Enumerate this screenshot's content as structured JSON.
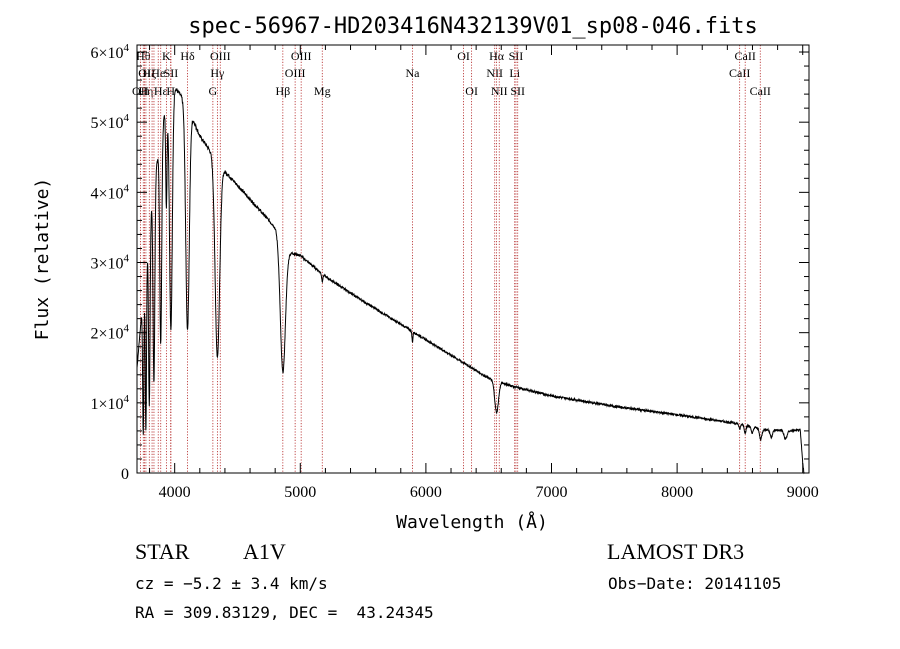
{
  "colors": {
    "axis": "#000000",
    "spectrum": "#000000",
    "line_marker": "#b22222"
  },
  "chart_data": {
    "type": "line",
    "title": "spec-56967-HD203416N432139V01_sp08-046.fits",
    "xlabel": "Wavelength (Å)",
    "ylabel": "Flux (relative)",
    "xlim": [
      3700,
      9050
    ],
    "ylim": [
      0,
      61000
    ],
    "xticks": [
      4000,
      5000,
      6000,
      7000,
      8000,
      9000
    ],
    "xtick_labels": [
      "4000",
      "5000",
      "6000",
      "7000",
      "8000",
      "9000"
    ],
    "yticks": [
      {
        "value": 0,
        "mantissa": "0",
        "exp": ""
      },
      {
        "value": 10000,
        "mantissa": "1×10",
        "exp": "4"
      },
      {
        "value": 20000,
        "mantissa": "2×10",
        "exp": "4"
      },
      {
        "value": 30000,
        "mantissa": "3×10",
        "exp": "4"
      },
      {
        "value": 40000,
        "mantissa": "4×10",
        "exp": "4"
      },
      {
        "value": 50000,
        "mantissa": "5×10",
        "exp": "4"
      },
      {
        "value": 60000,
        "mantissa": "6×10",
        "exp": "4"
      }
    ],
    "continuum": [
      [
        3700,
        15000
      ],
      [
        3800,
        36000
      ],
      [
        3900,
        50000
      ],
      [
        4000,
        55000
      ],
      [
        4100,
        52500
      ],
      [
        4200,
        48000
      ],
      [
        4400,
        43000
      ],
      [
        4600,
        39000
      ],
      [
        4800,
        35000
      ],
      [
        4900,
        31500
      ],
      [
        5000,
        31000
      ],
      [
        5200,
        28000
      ],
      [
        5500,
        24500
      ],
      [
        6000,
        19000
      ],
      [
        6500,
        13500
      ],
      [
        6700,
        12300
      ],
      [
        7000,
        11000
      ],
      [
        7500,
        9500
      ],
      [
        8000,
        8300
      ],
      [
        8500,
        7000
      ],
      [
        8700,
        6200
      ],
      [
        8900,
        6000
      ],
      [
        8980,
        6100
      ],
      [
        9000,
        1500
      ],
      [
        9010,
        0
      ]
    ],
    "absorptions": [
      {
        "center": 3750,
        "width": 5,
        "depth": 20000
      },
      {
        "center": 3771,
        "width": 5,
        "depth": 24000
      },
      {
        "center": 3798,
        "width": 6,
        "depth": 26000
      },
      {
        "center": 3835,
        "width": 7,
        "depth": 28000
      },
      {
        "center": 3889,
        "width": 8,
        "depth": 30000
      },
      {
        "center": 3934,
        "width": 5,
        "depth": 14000
      },
      {
        "center": 3970,
        "width": 11,
        "depth": 33000
      },
      {
        "center": 4102,
        "width": 14,
        "depth": 32000
      },
      {
        "center": 4340,
        "width": 18,
        "depth": 28000
      },
      {
        "center": 4861,
        "width": 20,
        "depth": 18500
      },
      {
        "center": 5175,
        "width": 5,
        "depth": 1000
      },
      {
        "center": 5893,
        "width": 4,
        "depth": 1500
      },
      {
        "center": 6563,
        "width": 15,
        "depth": 4500
      },
      {
        "center": 8498,
        "width": 6,
        "depth": 800
      },
      {
        "center": 8542,
        "width": 7,
        "depth": 1100
      },
      {
        "center": 8598,
        "width": 9,
        "depth": 900
      },
      {
        "center": 8665,
        "width": 10,
        "depth": 1500
      },
      {
        "center": 8750,
        "width": 10,
        "depth": 1000
      },
      {
        "center": 8863,
        "width": 12,
        "depth": 1200
      }
    ],
    "line_markers": [
      {
        "wavelength": 3727,
        "label": "OII",
        "row": 2
      },
      {
        "wavelength": 3750,
        "label": "Hθ",
        "row": 0
      },
      {
        "wavelength": 3760,
        "label": "OI",
        "row": 1
      },
      {
        "wavelength": 3771,
        "label": "Hη",
        "row": 2
      },
      {
        "wavelength": 3798,
        "label": "Hζ",
        "row": 1
      },
      {
        "wavelength": 3820,
        "label": "",
        "row": 1
      },
      {
        "wavelength": 3835,
        "label": "",
        "row": 0
      },
      {
        "wavelength": 3869,
        "label": "He",
        "row": 1
      },
      {
        "wavelength": 3889,
        "label": "Hε",
        "row": 2
      },
      {
        "wavelength": 3934,
        "label": "K",
        "row": 0
      },
      {
        "wavelength": 3968,
        "label": "H",
        "row": 2
      },
      {
        "wavelength": 3970,
        "label": "SII",
        "row": 1
      },
      {
        "wavelength": 4102,
        "label": "Hδ",
        "row": 0
      },
      {
        "wavelength": 4304,
        "label": "G",
        "row": 2
      },
      {
        "wavelength": 4340,
        "label": "Hγ",
        "row": 1
      },
      {
        "wavelength": 4363,
        "label": "OIII",
        "row": 0
      },
      {
        "wavelength": 4861,
        "label": "Hβ",
        "row": 2
      },
      {
        "wavelength": 4959,
        "label": "OIII",
        "row": 1
      },
      {
        "wavelength": 5007,
        "label": "OIII",
        "row": 0
      },
      {
        "wavelength": 5175,
        "label": "Mg",
        "row": 2
      },
      {
        "wavelength": 5893,
        "label": "Na",
        "row": 1
      },
      {
        "wavelength": 6300,
        "label": "OI",
        "row": 0
      },
      {
        "wavelength": 6364,
        "label": "OI",
        "row": 2
      },
      {
        "wavelength": 6548,
        "label": "NII",
        "row": 1
      },
      {
        "wavelength": 6563,
        "label": "Hα",
        "row": 0
      },
      {
        "wavelength": 6584,
        "label": "NII",
        "row": 2
      },
      {
        "wavelength": 6707,
        "label": "Li",
        "row": 1
      },
      {
        "wavelength": 6717,
        "label": "SII",
        "row": 0
      },
      {
        "wavelength": 6731,
        "label": "SII",
        "row": 2
      },
      {
        "wavelength": 8498,
        "label": "CaII",
        "row": 1
      },
      {
        "wavelength": 8542,
        "label": "CaII",
        "row": 0
      },
      {
        "wavelength": 8662,
        "label": "CaII",
        "row": 2
      }
    ]
  },
  "info": {
    "object_type": "STAR",
    "spectral_class": "A1V",
    "survey": "LAMOST DR3",
    "cz": "cz = −5.2 ± 3.4 km/s",
    "obs_date": "Obs−Date: 20141105",
    "coords": "RA = 309.83129, DEC =  43.24345"
  }
}
